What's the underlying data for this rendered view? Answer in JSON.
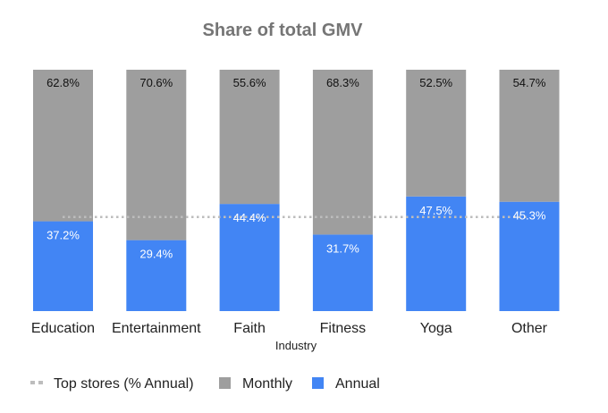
{
  "chart_data": {
    "type": "bar",
    "stacked": true,
    "title": "Share of total GMV",
    "xlabel": "Industry",
    "ylabel": "",
    "ylim": [
      0,
      100
    ],
    "categories": [
      "Education",
      "Entertainment",
      "Faith",
      "Fitness",
      "Yoga",
      "Other"
    ],
    "series": [
      {
        "name": "Annual",
        "color": "#4285f4",
        "values": [
          37.2,
          29.4,
          44.4,
          31.7,
          47.5,
          45.3
        ],
        "labels": [
          "37.2%",
          "29.4%",
          "44.4%",
          "31.7%",
          "47.5%",
          "45.3%"
        ]
      },
      {
        "name": "Monthly",
        "color": "#9e9e9e",
        "values": [
          62.8,
          70.6,
          55.6,
          68.3,
          52.5,
          54.7
        ],
        "labels": [
          "62.8%",
          "70.6%",
          "55.6%",
          "68.3%",
          "52.5%",
          "54.7%"
        ]
      }
    ],
    "reference_line": {
      "name": "Top stores (% Annual)",
      "value": 39,
      "color": "#bdbdbd",
      "style": "dotted"
    },
    "legend": {
      "position": "bottom-left",
      "order": [
        "Top stores (% Annual)",
        "Monthly",
        "Annual"
      ]
    },
    "grid": false
  }
}
